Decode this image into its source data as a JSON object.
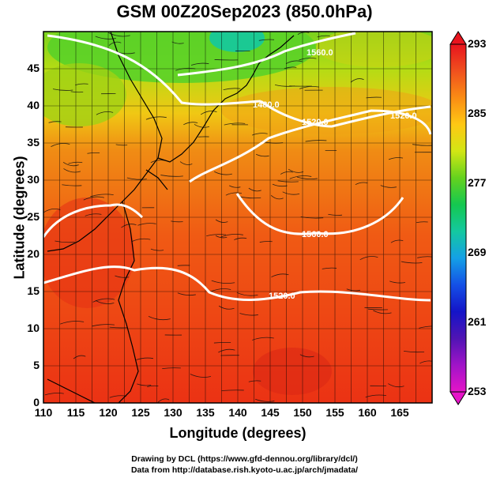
{
  "title": "GSM 00Z20Sep2023 (850.0hPa)",
  "xlabel": "Longitude (degrees)",
  "ylabel": "Latitude  (degrees)",
  "credits": [
    "Drawing by DCL (https://www.gfd-dennou.org/library/dcl/)",
    "Data from http://database.rish.kyoto-u.ac.jp/arch/jmadata/"
  ],
  "x_ticks": [
    "110",
    "115",
    "120",
    "125",
    "130",
    "135",
    "140",
    "145",
    "150",
    "155",
    "160",
    "165"
  ],
  "y_ticks": [
    "0",
    "5",
    "10",
    "15",
    "20",
    "25",
    "30",
    "35",
    "40",
    "45"
  ],
  "colorbar": {
    "ticks": [
      "293",
      "285",
      "277",
      "269",
      "261",
      "253"
    ],
    "colors": [
      "#e8141e",
      "#f0501e",
      "#fa8c14",
      "#ffc814",
      "#d2e614",
      "#64d21e",
      "#14c850",
      "#14c8a0",
      "#14a0e6",
      "#1450e6",
      "#1414c8",
      "#5014b4",
      "#a014c8",
      "#e614c8"
    ]
  },
  "contour_labels": [
    "1480.0",
    "1520.0",
    "1520.0",
    "1560.0",
    "1560.0",
    "1520.0"
  ],
  "chart_data": {
    "type": "heatmap",
    "title": "GSM 00Z20Sep2023 (850.0hPa)",
    "xlabel": "Longitude (degrees)",
    "ylabel": "Latitude  (degrees)",
    "xlim": [
      110,
      170
    ],
    "ylim": [
      0,
      50
    ],
    "colorbar_range": [
      253,
      293
    ],
    "colorbar_ticks": [
      293,
      285,
      277,
      269,
      261,
      253
    ],
    "contours": [
      {
        "label": "1480.0",
        "lon": 144,
        "lat": 42
      },
      {
        "label": "1520.0",
        "lon": 149,
        "lat": 40
      },
      {
        "label": "1520.0",
        "lon": 163,
        "lat": 41
      },
      {
        "label": "1560.0",
        "lon": 145,
        "lat": 46
      },
      {
        "label": "1560.0",
        "lon": 150,
        "lat": 25
      },
      {
        "label": "1520.0",
        "lon": 147,
        "lat": 16
      }
    ],
    "grid": true
  }
}
